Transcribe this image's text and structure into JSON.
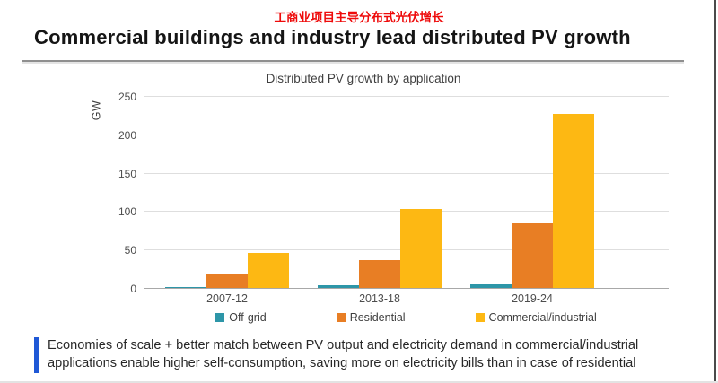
{
  "header": {
    "cn_title": "工商业项目主导分布式光伏增长",
    "title": "Commercial buildings and industry lead distributed PV growth"
  },
  "chart_data": {
    "type": "bar",
    "title": "Distributed PV growth by application",
    "ylabel": "GW",
    "categories": [
      "2007-12",
      "2013-18",
      "2019-24"
    ],
    "series": [
      {
        "name": "Off-grid",
        "color": "#2d96a8",
        "values": [
          1,
          3,
          5
        ]
      },
      {
        "name": "Residential",
        "color": "#e87e24",
        "values": [
          19,
          36,
          84
        ]
      },
      {
        "name": "Commercial/industrial",
        "color": "#fdb813",
        "values": [
          45,
          103,
          227
        ]
      }
    ],
    "ylim": [
      0,
      250
    ],
    "yticks": [
      0,
      50,
      100,
      150,
      200,
      250
    ],
    "grid": true,
    "legend_position": "bottom"
  },
  "footer": {
    "note": "Economies of scale + better match between PV output and electricity demand in commercial/industrial applications enable higher self-consumption, saving more on electricity bills than in case of residential"
  },
  "colors": {
    "cn_title_red": "#ee0a0a",
    "footer_accent_blue": "#1f58d6"
  }
}
